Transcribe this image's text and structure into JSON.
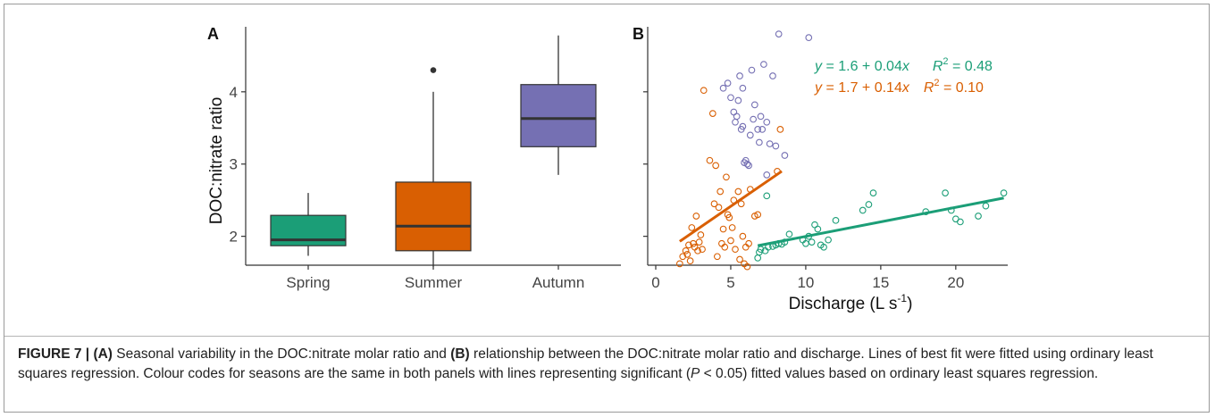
{
  "colors": {
    "spring": "#1b9e77",
    "summer": "#d95f02",
    "autumn": "#7570b3",
    "axis": "#333333",
    "median": "#333333"
  },
  "caption": {
    "label": "FIGURE 7 |",
    "a_ref": "(A)",
    "text_1": "Seasonal variability in the DOC:nitrate molar ratio and",
    "b_ref": "(B)",
    "text_2": "relationship between the DOC:nitrate molar ratio and discharge. Lines of best fit were fitted using ordinary least squares regression. Colour codes for seasons are the same in both panels with lines representing significant (",
    "p_symbol": "P",
    "text_3": " < 0.05) fitted values based on ordinary least squares regression."
  },
  "chart_data": [
    {
      "type": "box",
      "panel_label": "A",
      "title": "",
      "xlabel": "",
      "ylabel": "DOC:nitrate ratio",
      "ylim": [
        1.6,
        4.9
      ],
      "yticks": [
        2,
        3,
        4
      ],
      "categories": [
        "Spring",
        "Summer",
        "Autumn"
      ],
      "boxes": [
        {
          "category": "Spring",
          "color": "#1b9e77",
          "whisker_low": 1.73,
          "q1": 1.87,
          "median": 1.95,
          "q3": 2.29,
          "whisker_high": 2.6,
          "outliers": []
        },
        {
          "category": "Summer",
          "color": "#d95f02",
          "whisker_low": 1.58,
          "q1": 1.8,
          "median": 2.14,
          "q3": 2.75,
          "whisker_high": 4.0,
          "outliers": [
            4.3
          ]
        },
        {
          "category": "Autumn",
          "color": "#7570b3",
          "whisker_low": 2.85,
          "q1": 3.24,
          "median": 3.63,
          "q3": 4.1,
          "whisker_high": 4.78,
          "outliers": []
        }
      ]
    },
    {
      "type": "scatter",
      "panel_label": "B",
      "title": "",
      "xlabel": "Discharge (L s",
      "xlabel_superscript": "-1",
      "xlabel_suffix": ")",
      "ylabel": "",
      "xlim": [
        0,
        24
      ],
      "ylim": [
        1.6,
        4.9
      ],
      "xticks": [
        0,
        5,
        10,
        15,
        20
      ],
      "yticks": [
        2,
        3,
        4
      ],
      "series": [
        {
          "key": "spring",
          "color": "#1b9e77",
          "points": [
            [
              6.8,
              1.7
            ],
            [
              6.9,
              1.78
            ],
            [
              7.0,
              1.82
            ],
            [
              7.3,
              1.8
            ],
            [
              7.5,
              1.85
            ],
            [
              7.8,
              1.86
            ],
            [
              8.0,
              1.88
            ],
            [
              8.2,
              1.9
            ],
            [
              8.4,
              1.89
            ],
            [
              8.6,
              1.92
            ],
            [
              8.9,
              2.03
            ],
            [
              9.8,
              1.95
            ],
            [
              10.0,
              1.9
            ],
            [
              10.2,
              2.0
            ],
            [
              10.4,
              1.92
            ],
            [
              10.6,
              2.16
            ],
            [
              10.8,
              2.1
            ],
            [
              11.0,
              1.88
            ],
            [
              11.2,
              1.85
            ],
            [
              11.5,
              1.95
            ],
            [
              12.0,
              2.22
            ],
            [
              13.8,
              2.36
            ],
            [
              14.2,
              2.44
            ],
            [
              14.5,
              2.6
            ],
            [
              18.0,
              2.34
            ],
            [
              19.3,
              2.6
            ],
            [
              19.7,
              2.36
            ],
            [
              20.0,
              2.24
            ],
            [
              20.3,
              2.2
            ],
            [
              21.5,
              2.28
            ],
            [
              22.0,
              2.42
            ],
            [
              23.2,
              2.6
            ],
            [
              7.4,
              2.56
            ]
          ],
          "fit": {
            "x": [
              6.8,
              23.2
            ],
            "y": [
              1.87,
              2.53
            ]
          },
          "equation": {
            "y_var": "y",
            "lhs": " = 1.6 + 0.04",
            "x_var": "x",
            "r2_label": "R",
            "r2_sup": "2",
            "r2_value": " = 0.48"
          }
        },
        {
          "key": "summer",
          "color": "#d95f02",
          "points": [
            [
              1.6,
              1.62
            ],
            [
              1.8,
              1.72
            ],
            [
              2.0,
              1.8
            ],
            [
              2.1,
              1.75
            ],
            [
              2.2,
              1.88
            ],
            [
              2.3,
              1.66
            ],
            [
              2.4,
              2.12
            ],
            [
              2.5,
              1.9
            ],
            [
              2.6,
              1.85
            ],
            [
              2.7,
              2.28
            ],
            [
              2.8,
              1.8
            ],
            [
              2.9,
              1.92
            ],
            [
              3.0,
              2.02
            ],
            [
              3.1,
              1.82
            ],
            [
              3.2,
              4.02
            ],
            [
              3.6,
              3.05
            ],
            [
              3.8,
              3.7
            ],
            [
              3.9,
              2.45
            ],
            [
              4.0,
              2.98
            ],
            [
              4.1,
              1.72
            ],
            [
              4.2,
              2.4
            ],
            [
              4.3,
              2.62
            ],
            [
              4.4,
              1.9
            ],
            [
              4.5,
              2.1
            ],
            [
              4.6,
              1.85
            ],
            [
              4.7,
              2.82
            ],
            [
              4.8,
              2.3
            ],
            [
              4.9,
              2.26
            ],
            [
              5.0,
              1.94
            ],
            [
              5.1,
              2.12
            ],
            [
              5.2,
              2.5
            ],
            [
              5.3,
              1.82
            ],
            [
              5.5,
              2.62
            ],
            [
              5.6,
              1.68
            ],
            [
              5.7,
              2.45
            ],
            [
              5.8,
              2.0
            ],
            [
              5.9,
              1.62
            ],
            [
              6.0,
              1.85
            ],
            [
              6.1,
              1.58
            ],
            [
              6.2,
              1.9
            ],
            [
              6.3,
              2.65
            ],
            [
              6.6,
              2.28
            ],
            [
              6.8,
              2.3
            ],
            [
              8.3,
              3.48
            ],
            [
              8.1,
              2.9
            ]
          ],
          "fit": {
            "x": [
              1.6,
              8.4
            ],
            "y": [
              1.93,
              2.9
            ]
          },
          "equation": {
            "y_var": "y",
            "lhs": " = 1.7 + 0.14",
            "x_var": "x",
            "r2_label": "R",
            "r2_sup": "2",
            "r2_value": " = 0.10"
          }
        },
        {
          "key": "autumn",
          "color": "#7570b3",
          "points": [
            [
              4.5,
              4.05
            ],
            [
              4.8,
              4.12
            ],
            [
              5.0,
              3.92
            ],
            [
              5.2,
              3.72
            ],
            [
              5.3,
              3.58
            ],
            [
              5.4,
              3.66
            ],
            [
              5.5,
              3.88
            ],
            [
              5.6,
              4.22
            ],
            [
              5.7,
              3.48
            ],
            [
              5.8,
              4.05
            ],
            [
              5.9,
              3.02
            ],
            [
              6.0,
              3.05
            ],
            [
              6.1,
              3.0
            ],
            [
              6.2,
              2.98
            ],
            [
              6.3,
              3.4
            ],
            [
              6.4,
              4.3
            ],
            [
              6.5,
              3.62
            ],
            [
              6.6,
              3.82
            ],
            [
              6.8,
              3.48
            ],
            [
              7.0,
              3.66
            ],
            [
              7.2,
              4.38
            ],
            [
              7.4,
              3.58
            ],
            [
              7.6,
              3.28
            ],
            [
              7.8,
              4.22
            ],
            [
              8.0,
              3.25
            ],
            [
              7.4,
              2.85
            ],
            [
              7.1,
              3.48
            ],
            [
              8.2,
              4.8
            ],
            [
              10.2,
              4.75
            ],
            [
              8.6,
              3.12
            ],
            [
              6.9,
              3.3
            ],
            [
              5.8,
              3.52
            ]
          ],
          "fit": null
        }
      ]
    }
  ]
}
